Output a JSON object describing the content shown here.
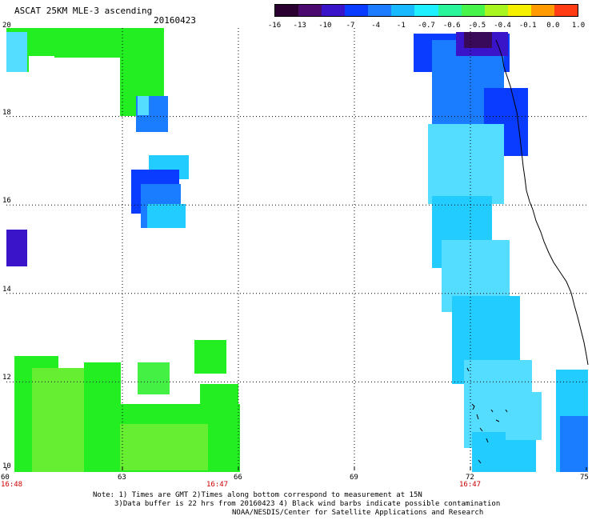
{
  "header": {
    "title": "ASCAT 25KM MLE-3 ascending",
    "date": "20160423"
  },
  "colorbar": {
    "labels": [
      "-16",
      "-13",
      "-10",
      "-7",
      "-4",
      "-1",
      "-0.7",
      "-0.6",
      "-0.5",
      "-0.4",
      "-0.1",
      "0.0",
      "1.0"
    ],
    "colors": [
      "#2a0030",
      "#4b0a6e",
      "#3a14c8",
      "#0a3cff",
      "#1e7cff",
      "#19b9ff",
      "#1ff0ff",
      "#2af59a",
      "#47f54a",
      "#a8f520",
      "#f5f000",
      "#ff9a00",
      "#ff3c14"
    ]
  },
  "axes": {
    "x_ticks": [
      "60",
      "63",
      "66",
      "69",
      "72",
      "75"
    ],
    "y_ticks": [
      "20",
      "18",
      "16",
      "14",
      "12",
      "10"
    ],
    "time_labels": [
      "16:48",
      "16:47",
      "16:47"
    ]
  },
  "notes": {
    "line1": "Note: 1) Times are GMT 2)Times along bottom correspond to measurement at 15N",
    "line2": "3)Data buffer is 22 hrs from 20160423 4) Black wind barbs indicate possible contamination",
    "line3": "NOAA/NESDIS/Center for Satellite Applications and Research"
  },
  "map_colors": {
    "green": "#22ee22",
    "yellow_green": "#66ee33",
    "light_green": "#44f044",
    "cyan": "#22ccff",
    "light_cyan": "#55ddff",
    "blue": "#1a7cff",
    "deep_blue": "#0a3cff",
    "indigo": "#3a14c8",
    "purple": "#5a1a9a",
    "dark_purple": "#3a0a5a"
  }
}
